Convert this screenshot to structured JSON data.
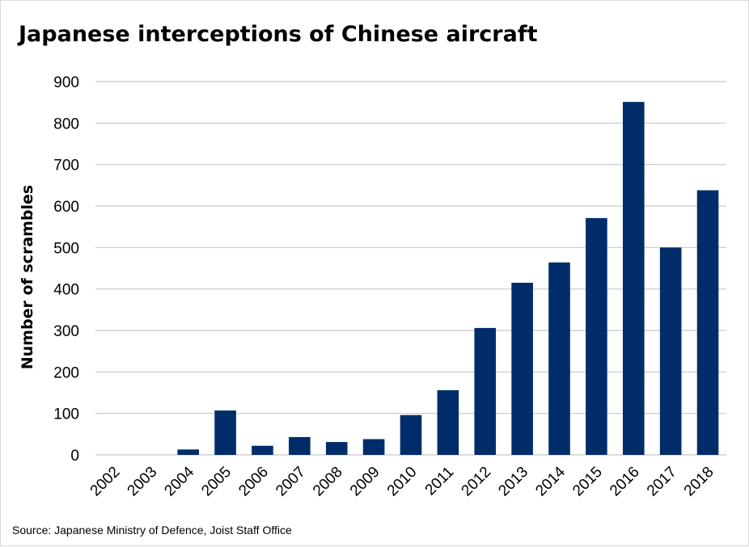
{
  "chart_data": {
    "type": "bar",
    "title": "Japanese interceptions of Chinese aircraft",
    "xlabel": "",
    "ylabel": "Number of scrambles",
    "categories": [
      "2002",
      "2003",
      "2004",
      "2005",
      "2006",
      "2007",
      "2008",
      "2009",
      "2010",
      "2011",
      "2012",
      "2013",
      "2014",
      "2015",
      "2016",
      "2017",
      "2018"
    ],
    "values": [
      0,
      0,
      13,
      107,
      22,
      43,
      31,
      38,
      96,
      156,
      306,
      415,
      464,
      571,
      851,
      500,
      638
    ],
    "ylim": [
      0,
      900
    ],
    "yticks": [
      "0",
      "100",
      "200",
      "300",
      "400",
      "500",
      "600",
      "700",
      "800",
      "900"
    ],
    "grid": true,
    "legend": "none",
    "bar_color": "#002D6A",
    "grid_color": "#C8C8C8"
  },
  "source": "Source: Japanese  Ministry of Defence, Joist Staff Office"
}
